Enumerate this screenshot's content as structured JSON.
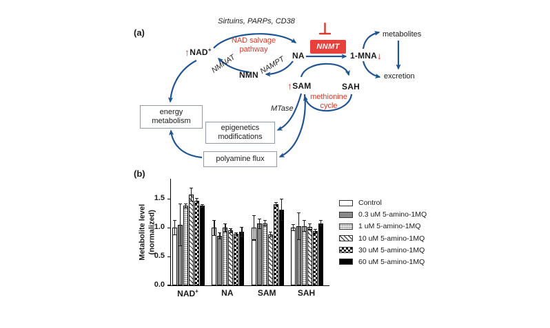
{
  "panel_a": {
    "label": "(a)",
    "labels": {
      "enzymes_top": "Sirtuins, PARPs, CD38",
      "nad_salvage": "NAD salvage\npathway",
      "nad": "NAD",
      "nad_sup": "+",
      "nmnat": "NMNAT",
      "nmn": "NMN",
      "nampt": "NAMPT",
      "na": "NA",
      "nnmt": "NNMT",
      "mna": "1-MNA",
      "metabolites": "metabolites",
      "excretion": "excretion",
      "sam": "SAM",
      "sah": "SAH",
      "methionine_cycle": "methionine\ncycle",
      "mtase": "MTase",
      "box_energy": "energy\nmetabolism",
      "box_epigenetics": "epigenetics\nmodifications",
      "box_polyamine": "polyamine flux"
    },
    "indicators": {
      "up": "↑",
      "down": "↓"
    }
  },
  "panel_b": {
    "label": "(b)"
  },
  "chart_data": {
    "type": "bar",
    "title": "",
    "categories": [
      "NAD+",
      "NA",
      "SAM",
      "SAH"
    ],
    "series": [
      {
        "name": "Control",
        "pattern": "open",
        "values": [
          1.0,
          1.0,
          1.0,
          1.0
        ],
        "errors": [
          0.13,
          0.14,
          0.22,
          0.06
        ]
      },
      {
        "name": "0.3 uM 5-amino-1MQ",
        "pattern": "solid-gray",
        "values": [
          1.05,
          0.86,
          1.07,
          1.03
        ],
        "errors": [
          0.37,
          0.06,
          0.09,
          0.24
        ]
      },
      {
        "name": "1 uM 5-amino-1MQ",
        "pattern": "stipple",
        "values": [
          1.38,
          1.0,
          1.08,
          1.03
        ],
        "errors": [
          0.04,
          0.08,
          0.06,
          0.1
        ]
      },
      {
        "name": "10 uM 5-amino-1MQ",
        "pattern": "hatch",
        "values": [
          1.58,
          0.95,
          0.88,
          1.02
        ],
        "errors": [
          0.12,
          0.04,
          0.05,
          0.06
        ]
      },
      {
        "name": "30 uM 5-amino-1MQ",
        "pattern": "checker",
        "values": [
          1.47,
          0.89,
          1.41,
          0.94
        ],
        "errors": [
          0.05,
          0.03,
          0.04,
          0.04
        ]
      },
      {
        "name": "60 uM 5-amino-1MQ",
        "pattern": "solid-black",
        "values": [
          1.38,
          0.93,
          1.31,
          1.08
        ],
        "errors": [
          0.03,
          0.09,
          0.19,
          0.05
        ]
      }
    ],
    "xlabel": "",
    "ylabel": "Metabolite level\n(normalized)",
    "yticks": [
      "0.0",
      "0.5",
      "1.0",
      "1.5"
    ],
    "ylim": [
      0,
      1.85
    ],
    "grid": false,
    "legend_position": "right"
  },
  "colors": {
    "arrow_blue": "#1f5493",
    "red_accent": "#d93a2b",
    "nnmt_box_fill": "#e8403a",
    "diagram_box_border": "#8c9aa8",
    "bar_gray": "#8a8a8a"
  }
}
